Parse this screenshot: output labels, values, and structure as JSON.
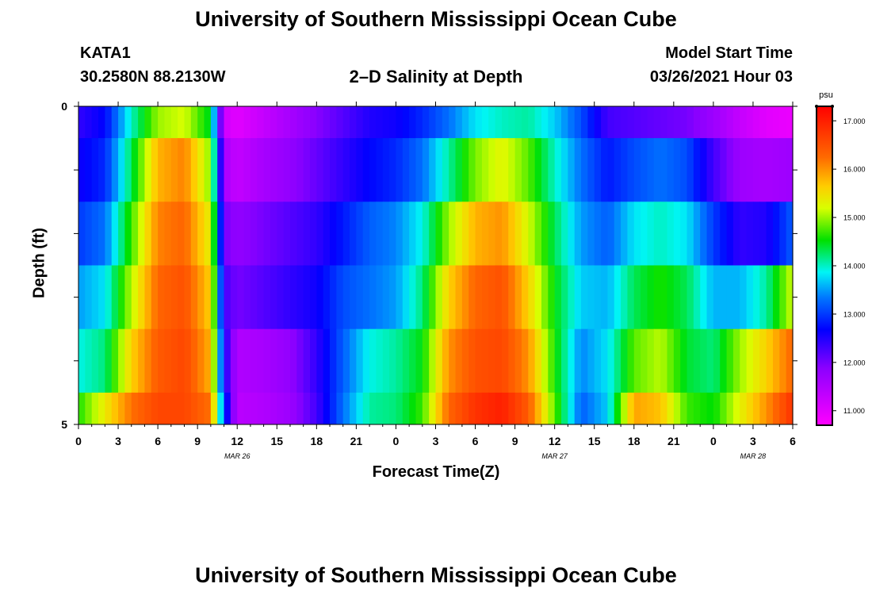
{
  "header": {
    "title_top": "University of Southern Mississippi Ocean Cube",
    "station": "KATA1",
    "coords": "30.2580N 88.2130W",
    "plot_title": "2–D Salinity at Depth",
    "model_label": "Model Start Time",
    "model_time": "03/26/2021 Hour 03",
    "title_bottom": "University of Southern Mississippi Ocean Cube"
  },
  "colorbar": {
    "unit": "psu",
    "ticks": [
      "17.000",
      "16.000",
      "15.000",
      "14.000",
      "13.000",
      "12.000",
      "11.000"
    ],
    "range": [
      10.7,
      17.3
    ]
  },
  "chart_data": {
    "type": "heatmap",
    "title": "2–D Salinity at Depth",
    "xlabel": "Forecast Time(Z)",
    "ylabel": "Depth (ft)",
    "x_ticks": [
      "0",
      "3",
      "6",
      "9",
      "12",
      "15",
      "18",
      "21",
      "0",
      "3",
      "6",
      "9",
      "12",
      "15",
      "18",
      "21",
      "0",
      "3",
      "6"
    ],
    "x_range_hours": [
      0,
      54
    ],
    "date_labels": [
      {
        "text": "MAR 26",
        "hour": 12
      },
      {
        "text": "MAR 27",
        "hour": 36
      },
      {
        "text": "MAR 28",
        "hour": 51
      }
    ],
    "y_ticks": [
      "0",
      "5"
    ],
    "y_range_ft": [
      0,
      5
    ],
    "depth_bins": [
      0,
      1,
      2,
      3,
      4,
      5
    ],
    "x_hours": [
      0,
      2,
      4,
      6,
      8,
      10,
      11,
      12,
      14,
      16,
      18,
      20,
      22,
      24,
      26,
      28,
      30,
      32,
      34,
      36,
      38,
      40,
      42,
      44,
      46,
      48,
      50,
      52,
      54
    ],
    "values": [
      [
        12.4,
        12.7,
        14.0,
        15.0,
        15.2,
        14.4,
        11.2,
        11.0,
        11.3,
        11.6,
        11.9,
        12.2,
        12.5,
        12.6,
        12.9,
        13.3,
        13.8,
        14.0,
        14.1,
        13.7,
        13.1,
        12.3,
        12.2,
        12.1,
        12.0,
        11.7,
        11.3,
        11.0,
        10.9
      ],
      [
        12.6,
        12.9,
        14.3,
        15.8,
        16.1,
        14.9,
        11.6,
        11.3,
        11.6,
        11.8,
        12.1,
        12.4,
        12.7,
        12.9,
        13.3,
        14.1,
        14.9,
        15.3,
        14.8,
        14.0,
        13.3,
        12.8,
        13.1,
        13.3,
        13.1,
        12.3,
        11.7,
        11.6,
        11.7
      ],
      [
        13.0,
        13.3,
        14.7,
        16.1,
        16.3,
        15.3,
        12.0,
        11.8,
        12.0,
        12.2,
        12.4,
        12.8,
        13.2,
        13.4,
        13.9,
        15.0,
        15.8,
        16.0,
        15.2,
        14.3,
        13.5,
        13.2,
        13.8,
        14.0,
        13.8,
        13.0,
        12.4,
        12.5,
        13.2
      ],
      [
        13.5,
        13.8,
        15.1,
        16.3,
        16.5,
        15.6,
        12.3,
        12.0,
        12.2,
        12.4,
        12.6,
        13.1,
        13.3,
        13.5,
        14.2,
        15.6,
        16.3,
        16.5,
        15.6,
        14.5,
        13.7,
        13.6,
        14.3,
        14.6,
        14.3,
        13.6,
        13.6,
        14.1,
        15.2
      ],
      [
        13.9,
        14.2,
        15.6,
        16.4,
        16.6,
        15.8,
        12.6,
        11.5,
        11.6,
        11.8,
        12.4,
        13.2,
        13.9,
        14.1,
        14.5,
        16.0,
        16.5,
        16.6,
        16.0,
        14.6,
        13.4,
        13.8,
        14.8,
        15.1,
        14.4,
        14.2,
        15.0,
        15.6,
        16.3
      ],
      [
        14.6,
        15.4,
        16.2,
        16.6,
        16.6,
        16.2,
        13.0,
        11.4,
        11.5,
        11.7,
        12.3,
        13.3,
        14.1,
        14.2,
        14.7,
        16.3,
        16.8,
        17.0,
        16.4,
        14.8,
        13.2,
        13.7,
        15.9,
        15.7,
        14.7,
        14.5,
        15.3,
        16.0,
        16.8
      ]
    ]
  }
}
